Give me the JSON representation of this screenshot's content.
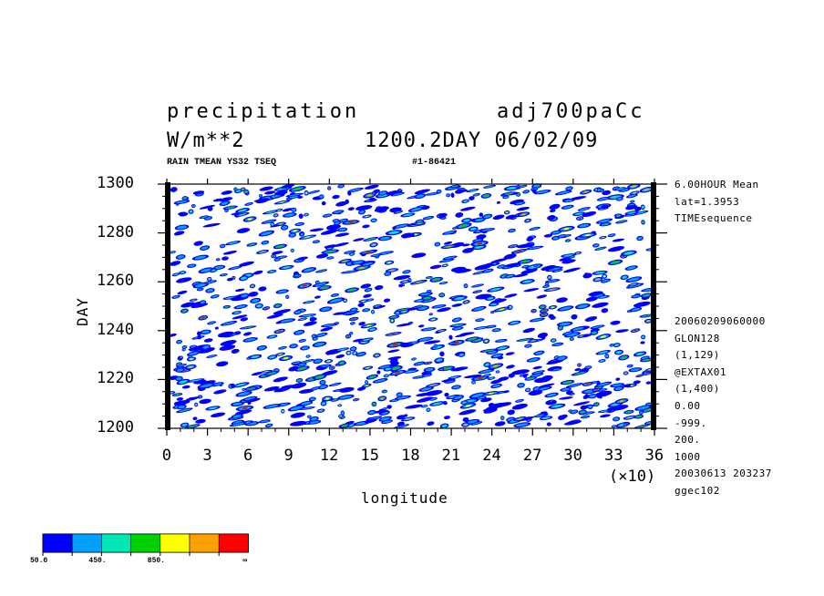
{
  "header": {
    "title_left": "precipitation",
    "title_right": "adj700paCc",
    "units": "W/m**2",
    "time_info": "1200.2DAY 06/02/09",
    "sub_left": "RAIN TMEAN YS32 TSEQ",
    "sub_right": "#1-86421"
  },
  "info_top": [
    "6.00HOUR Mean",
    "lat=1.3953",
    "TIMEsequence"
  ],
  "info_bottom": [
    "20060209060000",
    "GLON128",
    "(1,129)",
    "@EXTAX01",
    "(1,400)",
    "0.00",
    "-999.",
    "200.",
    "1000",
    "20030613 203237",
    "ggec102"
  ],
  "chart_data": {
    "type": "heatmap",
    "title": "precipitation",
    "xlabel": "longitude",
    "ylabel": "DAY",
    "x_multiplier": "(×10)",
    "xlim": [
      0,
      36
    ],
    "ylim": [
      1200,
      1300
    ],
    "x_ticks": [
      "0",
      "3",
      "6",
      "9",
      "12",
      "15",
      "18",
      "21",
      "24",
      "27",
      "30",
      "33",
      "36"
    ],
    "y_ticks": [
      "1200",
      "1220",
      "1240",
      "1260",
      "1280",
      "1300"
    ],
    "levels": [
      50,
      250,
      450,
      650,
      850,
      1050,
      1250
    ],
    "colors": [
      "#0000ff",
      "#00a0ff",
      "#00e6b4",
      "#00d200",
      "#ffff00",
      "#ffa000",
      "#ff0000"
    ],
    "colorbar_labels": [
      "50.0",
      "450.",
      "850.",
      "∞"
    ]
  }
}
